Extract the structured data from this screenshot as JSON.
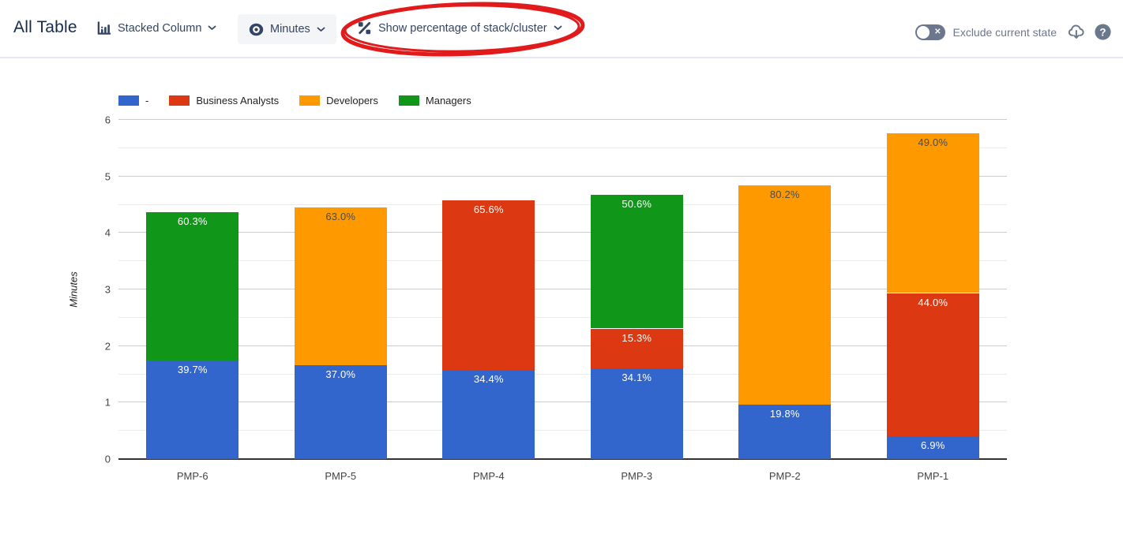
{
  "header": {
    "title": "All Table",
    "chart_type_control": {
      "label": "Stacked Column"
    },
    "unit_control": {
      "label": "Minutes"
    },
    "percentage_control": {
      "label": "Show percentage of stack/cluster"
    },
    "exclude_toggle_label": "Exclude current state",
    "help_glyph": "?"
  },
  "annotation": {
    "shape": "hand-drawn-ellipse",
    "color": "#e11b1b"
  },
  "chart_data": {
    "type": "bar",
    "subtype": "stacked-column",
    "title": "",
    "ylabel": "Minutes",
    "ylim": [
      0,
      6
    ],
    "y_major_step": 1,
    "y_minor_step": 0.5,
    "grid": true,
    "legend_position": "top",
    "categories": [
      "PMP-6",
      "PMP-5",
      "PMP-4",
      "PMP-3",
      "PMP-2",
      "PMP-1"
    ],
    "series": [
      {
        "name": "-",
        "color": "#3366cc",
        "label_color": "#ffffff",
        "values": [
          1.74,
          1.66,
          1.58,
          1.6,
          0.96,
          0.4
        ],
        "labels": [
          "39.7%",
          "37.0%",
          "34.4%",
          "34.1%",
          "19.8%",
          "6.9%"
        ]
      },
      {
        "name": "Business Analysts",
        "color": "#dc3912",
        "label_color": "#ffffff",
        "values": [
          0,
          0,
          3.01,
          0.72,
          0,
          2.55
        ],
        "labels": [
          null,
          null,
          "65.6%",
          "15.3%",
          null,
          "44.0%"
        ]
      },
      {
        "name": "Developers",
        "color": "#ff9900",
        "label_color": "#4d4d4d",
        "values": [
          0,
          2.81,
          0,
          0,
          3.9,
          2.83
        ],
        "labels": [
          null,
          "63.0%",
          null,
          null,
          "80.2%",
          "49.0%"
        ]
      },
      {
        "name": "Managers",
        "color": "#109618",
        "label_color": "#ffffff",
        "values": [
          2.64,
          0,
          0,
          2.37,
          0,
          0
        ],
        "labels": [
          "60.3%",
          null,
          null,
          "50.6%",
          null,
          null
        ]
      }
    ],
    "bar_totals_minutes": [
      4.38,
      4.47,
      4.59,
      4.69,
      4.86,
      5.78
    ]
  }
}
